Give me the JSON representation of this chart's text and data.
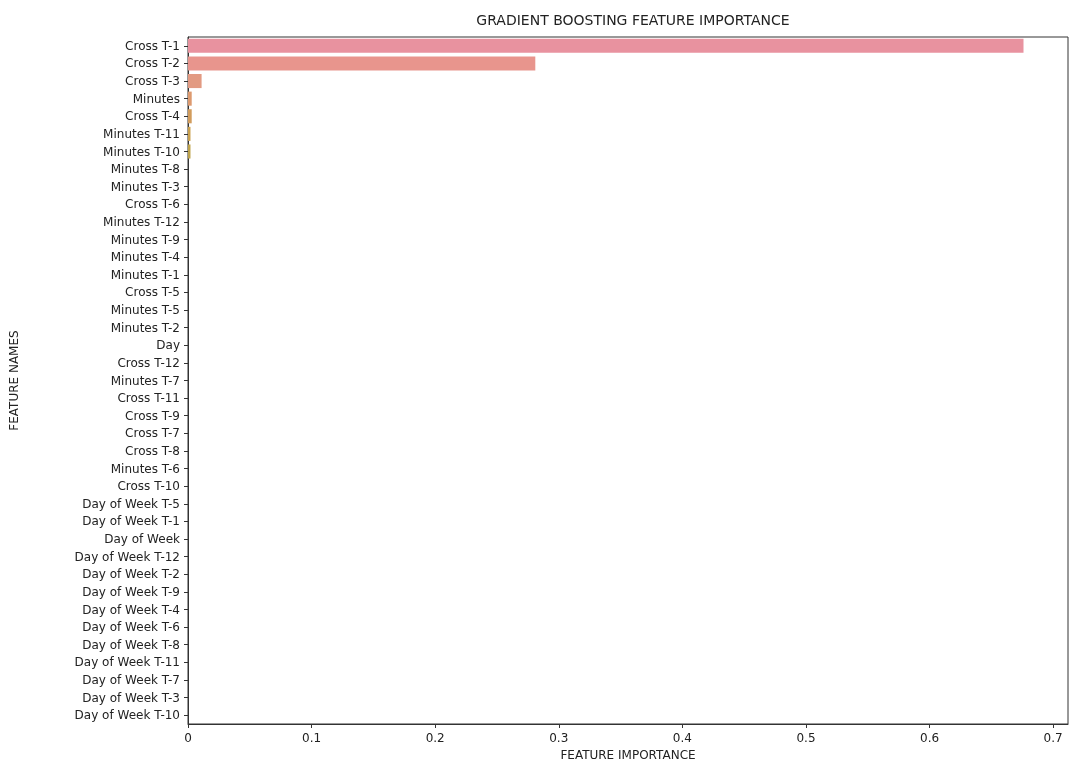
{
  "chart_data": {
    "type": "bar",
    "orientation": "horizontal",
    "title": "GRADIENT BOOSTING FEATURE IMPORTANCE",
    "xlabel": "FEATURE IMPORTANCE",
    "ylabel": "FEATURE NAMES",
    "categories": [
      "Cross T-1",
      "Cross T-2",
      "Cross T-3",
      "Minutes",
      "Cross T-4",
      "Minutes T-11",
      "Minutes T-10",
      "Minutes T-8",
      "Minutes T-3",
      "Cross T-6",
      "Minutes T-12",
      "Minutes T-9",
      "Minutes T-4",
      "Minutes T-1",
      "Cross T-5",
      "Minutes T-5",
      "Minutes T-2",
      "Day",
      "Cross T-12",
      "Minutes T-7",
      "Cross T-11",
      "Cross T-9",
      "Cross T-7",
      "Cross T-8",
      "Minutes T-6",
      "Cross T-10",
      "Day of Week T-5",
      "Day of Week T-1",
      "Day of Week",
      "Day of Week T-12",
      "Day of Week T-2",
      "Day of Week T-9",
      "Day of Week T-4",
      "Day of Week T-6",
      "Day of Week T-8",
      "Day of Week T-11",
      "Day of Week T-7",
      "Day of Week T-3",
      "Day of Week T-10"
    ],
    "values": [
      0.676,
      0.281,
      0.011,
      0.003,
      0.003,
      0.002,
      0.002,
      0,
      0,
      0,
      0,
      0,
      0,
      0,
      0,
      0,
      0,
      0,
      0,
      0,
      0,
      0,
      0,
      0,
      0,
      0,
      0,
      0,
      0,
      0,
      0,
      0,
      0,
      0,
      0,
      0,
      0,
      0,
      0
    ],
    "colors": [
      "#e8929f",
      "#e8958d",
      "#e29a82",
      "#dd9a6f",
      "#d29c5c",
      "#c9a04e",
      "#bda24a",
      "#b2a649",
      "#a6aa4a",
      "#99ad4d",
      "#8bb152",
      "#7bb45b",
      "#6cb766",
      "#60b872",
      "#58b97e",
      "#55b98a",
      "#55b996",
      "#55b9a1",
      "#56b9ab",
      "#58b8b6",
      "#5ab7c0",
      "#5db6ca",
      "#62b3d5",
      "#6aafdf",
      "#76aae7",
      "#85a4ec",
      "#949fee",
      "#a39aee",
      "#b196ec",
      "#be92e7",
      "#ca8ee0",
      "#d48cd8",
      "#dd8bcd",
      "#e38bc2",
      "#e78cb7",
      "#e98dae",
      "#e98fa6",
      "#e9909f",
      "#e8929a"
    ],
    "xlim": [
      0,
      0.712
    ],
    "xticks": [
      0,
      0.1,
      0.2,
      0.3,
      0.4,
      0.5,
      0.6,
      0.7
    ],
    "grid": false
  }
}
